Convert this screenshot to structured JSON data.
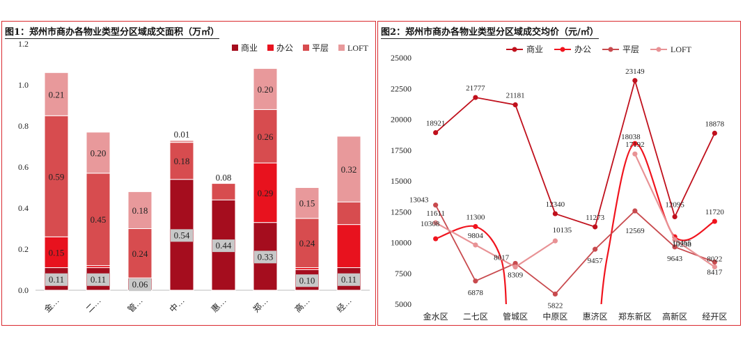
{
  "chart_data": [
    {
      "type": "bar",
      "stacked": true,
      "title": "图1：郑州市商办各物业类型分区域成交面积（万㎡）",
      "categories": [
        "金…",
        "二…",
        "管…",
        "中…",
        "惠…",
        "郑…",
        "高…",
        "经…"
      ],
      "ylim": [
        0,
        1.2
      ],
      "yticks": [
        "0.0",
        "0.2",
        "0.4",
        "0.6",
        "0.8",
        "1.0",
        "1.2"
      ],
      "legend_position": "top-right",
      "series": [
        {
          "name": "商业",
          "color": "#a50d1e",
          "values": [
            0.11,
            0.11,
            0.06,
            0.54,
            0.44,
            0.33,
            0.1,
            0.11
          ]
        },
        {
          "name": "办公",
          "color": "#e8121e",
          "values": [
            0.15,
            0.01,
            0.0,
            0.0,
            0.0,
            0.29,
            0.01,
            0.21
          ]
        },
        {
          "name": "平层",
          "color": "#d74c4f",
          "values": [
            0.59,
            0.45,
            0.24,
            0.18,
            0.08,
            0.26,
            0.24,
            0.11
          ]
        },
        {
          "name": "LOFT",
          "color": "#e8999b",
          "values": [
            0.21,
            0.2,
            0.18,
            0.01,
            0.0,
            0.2,
            0.15,
            0.32
          ]
        }
      ],
      "labels": [
        {
          "cat": 0,
          "series": 0,
          "text": "0.11",
          "boxed": true
        },
        {
          "cat": 0,
          "series": 1,
          "text": "0.15"
        },
        {
          "cat": 0,
          "series": 2,
          "text": "0.59"
        },
        {
          "cat": 0,
          "series": 3,
          "text": "0.21"
        },
        {
          "cat": 1,
          "series": 0,
          "text": "0.11",
          "boxed": true
        },
        {
          "cat": 1,
          "series": 2,
          "text": "0.45"
        },
        {
          "cat": 1,
          "series": 3,
          "text": "0.20"
        },
        {
          "cat": 2,
          "series": 0,
          "text": "0.06",
          "boxed": true
        },
        {
          "cat": 2,
          "series": 2,
          "text": "0.24"
        },
        {
          "cat": 2,
          "series": 3,
          "text": "0.18"
        },
        {
          "cat": 3,
          "series": 0,
          "text": "0.54",
          "boxed": true
        },
        {
          "cat": 3,
          "series": 2,
          "text": "0.18"
        },
        {
          "cat": 3,
          "series": 3,
          "text": "0.01",
          "above": true
        },
        {
          "cat": 4,
          "series": 0,
          "text": "0.44",
          "boxed": true
        },
        {
          "cat": 4,
          "series": 2,
          "text": "0.08",
          "above": true
        },
        {
          "cat": 5,
          "series": 0,
          "text": "0.33",
          "boxed": true
        },
        {
          "cat": 5,
          "series": 1,
          "text": "0.29"
        },
        {
          "cat": 5,
          "series": 2,
          "text": "0.26"
        },
        {
          "cat": 5,
          "series": 3,
          "text": "0.20"
        },
        {
          "cat": 6,
          "series": 0,
          "text": "0.10",
          "boxed": true
        },
        {
          "cat": 6,
          "series": 2,
          "text": "0.24"
        },
        {
          "cat": 6,
          "series": 3,
          "text": "0.15"
        },
        {
          "cat": 7,
          "series": 0,
          "text": "0.11",
          "boxed": true
        },
        {
          "cat": 7,
          "series": 3,
          "text": "0.32"
        }
      ]
    },
    {
      "type": "line",
      "title": "图2：郑州市商办各物业类型分区域成交均价（元/㎡）",
      "categories": [
        "金水区",
        "二七区",
        "管城区",
        "中原区",
        "惠济区",
        "郑东新区",
        "高新区",
        "经开区"
      ],
      "ylim": [
        5000,
        25000
      ],
      "yticks": [
        "5000",
        "7500",
        "10000",
        "12500",
        "15000",
        "17500",
        "20000",
        "22500",
        "25000"
      ],
      "legend_position": "top",
      "series": [
        {
          "name": "商业",
          "color": "#c0101c",
          "values": [
            18921,
            21777,
            21181,
            12340,
            11273,
            23149,
            12095,
            18878
          ]
        },
        {
          "name": "办公",
          "color": "#f0141e",
          "values": [
            10308,
            11300,
            null,
            null,
            null,
            18038,
            10465,
            11720
          ]
        },
        {
          "name": "平层",
          "color": "#c84a4e",
          "values": [
            13043,
            6878,
            8309,
            5822,
            9457,
            12569,
            9643,
            8417
          ]
        },
        {
          "name": "LOFT",
          "color": "#e89295",
          "values": [
            11611,
            9804,
            8017,
            10135,
            null,
            17192,
            10238,
            8022
          ]
        }
      ],
      "point_labels": [
        "18921",
        "21777",
        "21181",
        "12340",
        "11273",
        "23149",
        "12095",
        "18878",
        "10308",
        "11300",
        "18038",
        "10465",
        "11720",
        "13043",
        "6878",
        "8309",
        "5822",
        "9457",
        "12569",
        "9643",
        "8417",
        "11611",
        "9804",
        "8017",
        "10135",
        "17192",
        "10238",
        "8022"
      ]
    }
  ]
}
